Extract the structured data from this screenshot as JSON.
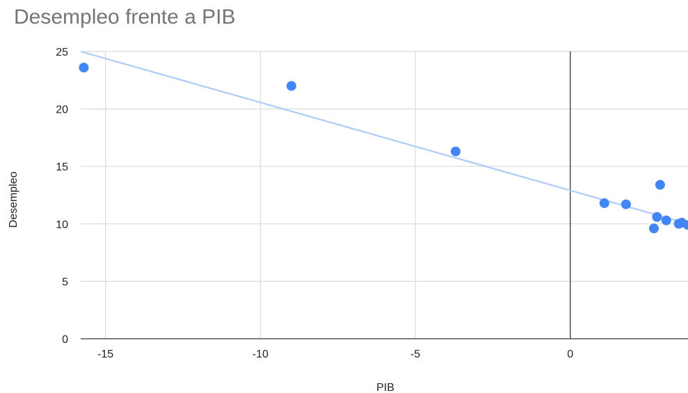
{
  "chart_data": {
    "type": "scatter",
    "title": "Desempleo frente a PIB",
    "xlabel": "PIB",
    "ylabel": "Desempleo",
    "xlim": [
      -15.8,
      3.8
    ],
    "ylim": [
      0,
      25
    ],
    "x_ticks": [
      -15,
      -10,
      -5,
      0
    ],
    "x_tick_labels": [
      "-15",
      "-10",
      "-5",
      "0"
    ],
    "y_ticks": [
      0,
      5,
      10,
      15,
      20,
      25
    ],
    "y_tick_labels": [
      "0",
      "5",
      "10",
      "15",
      "20",
      "25"
    ],
    "grid": true,
    "legend": "none",
    "point_color": "#4285f4",
    "trendline_color": "#aecbfa",
    "trendline": {
      "x": [
        -15.8,
        3.8
      ],
      "y": [
        25.0,
        10.0
      ]
    },
    "points": [
      {
        "x": -15.7,
        "y": 23.6
      },
      {
        "x": -9.0,
        "y": 22.0
      },
      {
        "x": -3.7,
        "y": 16.3
      },
      {
        "x": 1.1,
        "y": 11.8
      },
      {
        "x": 1.8,
        "y": 11.7
      },
      {
        "x": 2.7,
        "y": 9.6
      },
      {
        "x": 2.8,
        "y": 10.6
      },
      {
        "x": 2.9,
        "y": 13.4
      },
      {
        "x": 3.1,
        "y": 10.3
      },
      {
        "x": 3.5,
        "y": 10.0
      },
      {
        "x": 3.6,
        "y": 10.1
      },
      {
        "x": 3.8,
        "y": 9.9
      }
    ]
  }
}
